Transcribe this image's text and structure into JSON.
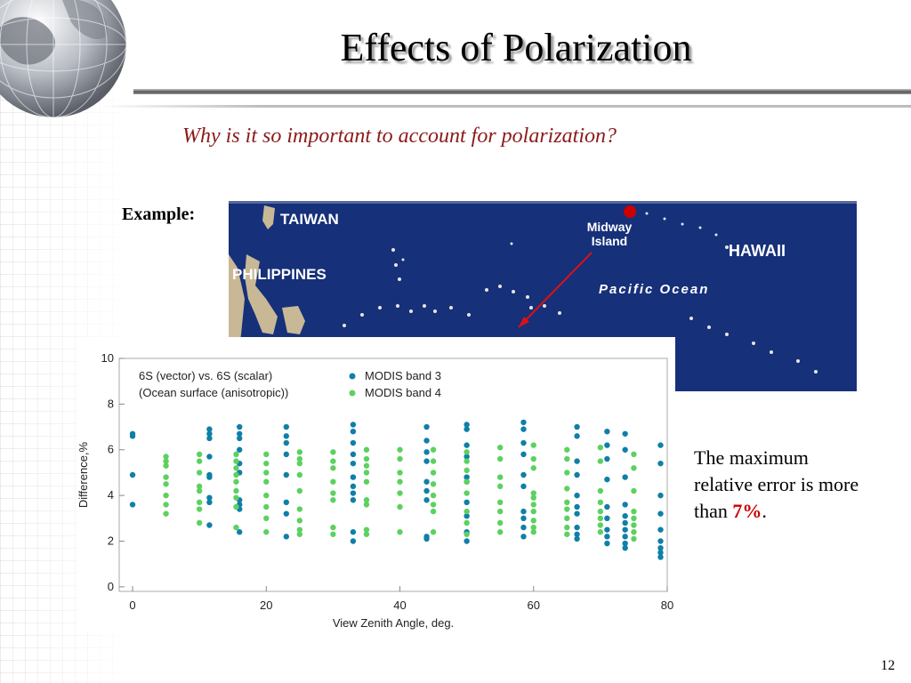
{
  "slide": {
    "title": "Effects of Polarization",
    "question": "Why is it so important to account for polarization?",
    "example_label": "Example:",
    "note_text": "The maximum relative error is more than ",
    "note_value": "7%",
    "note_end": ".",
    "page_number": "12"
  },
  "map": {
    "labels": [
      "TAIWAN",
      "PHILIPPINES",
      "Midway",
      "Island",
      "HAWAII",
      "Pacific Ocean"
    ],
    "ocean_color": "#16307a",
    "marker_color": "#cc0000"
  },
  "chart_data": {
    "type": "scatter",
    "xlabel": "View Zenith Angle, deg.",
    "ylabel": "Difference,%",
    "xlim": [
      -2,
      80
    ],
    "ylim": [
      -0.2,
      10
    ],
    "xticks": [
      0,
      20,
      40,
      60,
      80
    ],
    "yticks": [
      0,
      2,
      4,
      6,
      8,
      10
    ],
    "annotation": [
      "6S (vector) vs. 6S (scalar)",
      "(Ocean surface (anisotropic))"
    ],
    "legend_position": "top",
    "series": [
      {
        "name": "MODIS band 3",
        "color": "#0f7fa8",
        "x": [
          0,
          11.5,
          16,
          23,
          33,
          44,
          50,
          58.5,
          66.5,
          71,
          73.7,
          79
        ],
        "points": [
          [
            6.7,
            6.6,
            4.9,
            3.6
          ],
          [
            6.9,
            6.7,
            6.5,
            5.7,
            4.9,
            4.8,
            3.9,
            3.7,
            2.7
          ],
          [
            7.0,
            6.7,
            6.5,
            6.0,
            5.4,
            5.0,
            3.8,
            3.6,
            3.4,
            2.4
          ],
          [
            7.0,
            6.6,
            6.3,
            5.8,
            4.9,
            3.7,
            3.2,
            2.2
          ],
          [
            7.1,
            6.8,
            6.3,
            5.8,
            5.4,
            4.8,
            4.4,
            4.1,
            3.8,
            2.4,
            2.0
          ],
          [
            7.0,
            6.4,
            5.9,
            5.5,
            4.6,
            4.2,
            3.8,
            2.2,
            2.1
          ],
          [
            7.1,
            6.9,
            6.2,
            5.7,
            4.8,
            4.6,
            3.7,
            3.1,
            2.4,
            2.0
          ],
          [
            7.2,
            6.9,
            6.3,
            5.8,
            4.9,
            4.4,
            3.3,
            3.0,
            2.6,
            2.2
          ],
          [
            7.0,
            6.6,
            5.5,
            4.9,
            4.0,
            3.5,
            3.2,
            2.6,
            2.3,
            2.1
          ],
          [
            6.8,
            6.2,
            5.6,
            4.7,
            3.5,
            3.0,
            2.5,
            2.2,
            1.9
          ],
          [
            6.7,
            6.0,
            4.8,
            3.6,
            3.1,
            2.8,
            2.5,
            2.2,
            1.9,
            1.7
          ],
          [
            6.2,
            5.4,
            4.0,
            3.2,
            2.5,
            2.0,
            1.7,
            1.5,
            1.3
          ]
        ]
      },
      {
        "name": "MODIS band 4",
        "color": "#5cd160",
        "x": [
          5,
          10,
          15.5,
          20,
          25,
          30,
          35,
          40,
          45,
          50,
          55,
          60,
          65,
          70,
          75
        ],
        "points": [
          [
            5.7,
            5.5,
            5.3,
            4.8,
            4.5,
            4.0,
            3.6,
            3.2
          ],
          [
            5.8,
            5.5,
            5.0,
            4.4,
            4.2,
            3.7,
            3.4,
            2.8
          ],
          [
            5.8,
            5.5,
            5.2,
            4.9,
            4.6,
            4.2,
            3.9,
            3.5,
            2.6
          ],
          [
            5.8,
            5.4,
            5.0,
            4.6,
            4.0,
            3.5,
            3.0,
            2.4
          ],
          [
            5.9,
            5.6,
            5.4,
            4.9,
            4.2,
            3.4,
            2.9,
            2.5,
            2.3
          ],
          [
            5.9,
            5.5,
            5.2,
            4.6,
            4.1,
            3.8,
            2.6,
            2.3
          ],
          [
            6.0,
            5.6,
            5.3,
            5.0,
            4.6,
            3.8,
            3.6,
            2.5,
            2.3
          ],
          [
            6.0,
            5.6,
            5.0,
            4.6,
            4.1,
            3.5,
            2.4
          ],
          [
            6.0,
            5.5,
            5.0,
            4.5,
            4.0,
            3.6,
            3.3,
            2.4
          ],
          [
            5.9,
            5.5,
            5.1,
            4.6,
            4.1,
            3.3,
            2.8,
            2.3
          ],
          [
            6.1,
            5.6,
            4.8,
            4.4,
            3.7,
            3.3,
            2.8,
            2.4
          ],
          [
            6.2,
            5.6,
            5.2,
            4.1,
            3.9,
            3.6,
            3.3,
            2.9,
            2.6,
            2.4
          ],
          [
            6.0,
            5.6,
            5.0,
            4.3,
            3.7,
            3.4,
            3.0,
            2.6,
            2.3
          ],
          [
            6.1,
            5.5,
            4.2,
            3.7,
            3.3,
            3.0,
            2.7,
            2.4
          ],
          [
            5.8,
            5.2,
            4.2,
            3.3,
            3.0,
            2.7,
            2.4,
            2.1
          ]
        ]
      }
    ]
  }
}
